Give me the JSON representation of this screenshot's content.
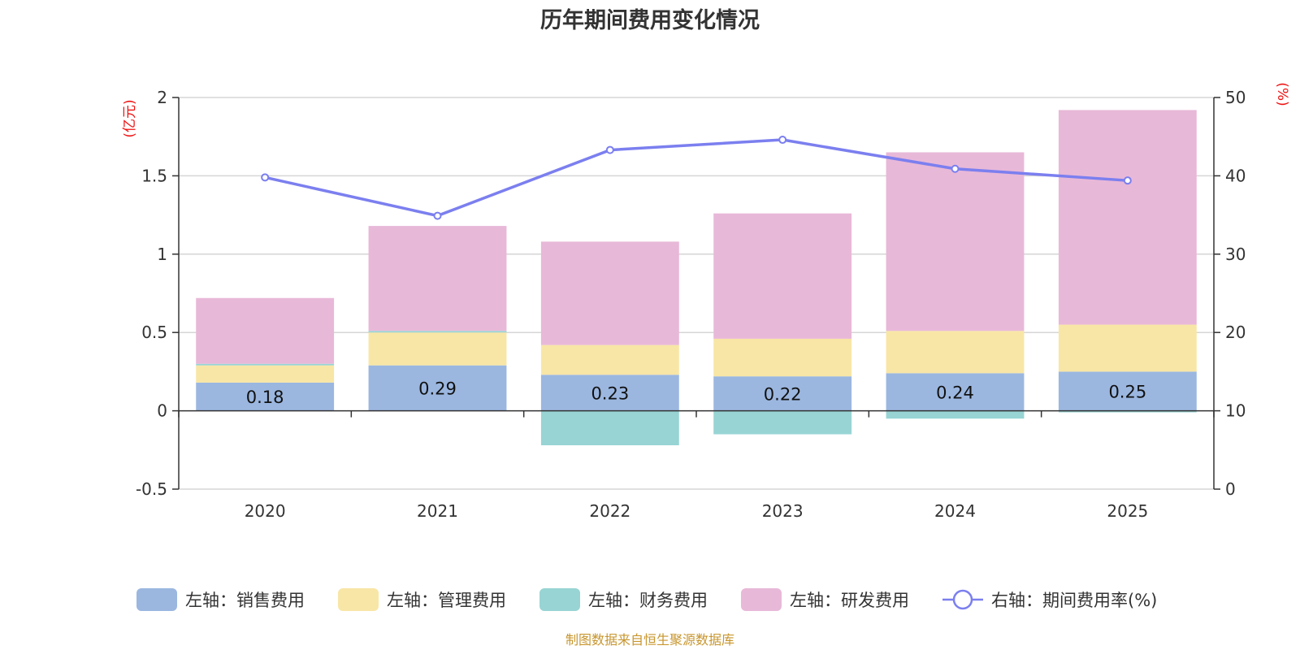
{
  "chart_data": {
    "type": "bar",
    "title": "历年期间费用变化情况",
    "categories": [
      "2020",
      "2021",
      "2022",
      "2023",
      "2024",
      "2025"
    ],
    "left_axis": {
      "unit": "(亿元)",
      "ylim": [
        -0.5,
        2
      ],
      "ticks": [
        "-0.5",
        "0",
        "0.5",
        "1",
        "1.5",
        "2"
      ]
    },
    "right_axis": {
      "unit": "(%)",
      "ylim": [
        0,
        50
      ],
      "ticks": [
        "0",
        "10",
        "20",
        "30",
        "40",
        "50"
      ]
    },
    "series": [
      {
        "name": "左轴：销售费用",
        "kind": "bar",
        "axis": "left",
        "color": "#9bb7e0",
        "values": [
          0.18,
          0.29,
          0.23,
          0.22,
          0.24,
          0.25
        ],
        "labels": [
          "0.18",
          "0.29",
          "0.23",
          "0.22",
          "0.24",
          "0.25"
        ]
      },
      {
        "name": "左轴：管理费用",
        "kind": "bar",
        "axis": "left",
        "color": "#f8e6a6",
        "values": [
          0.11,
          0.21,
          0.19,
          0.24,
          0.27,
          0.3
        ]
      },
      {
        "name": "左轴：财务费用",
        "kind": "bar",
        "axis": "left",
        "color": "#98d4d4",
        "values": [
          0.01,
          0.01,
          -0.22,
          -0.15,
          -0.05,
          -0.01
        ]
      },
      {
        "name": "左轴：研发费用",
        "kind": "bar",
        "axis": "left",
        "color": "#e8b8d8",
        "values": [
          0.42,
          0.67,
          0.66,
          0.8,
          1.14,
          1.37
        ]
      },
      {
        "name": "右轴：期间费用率(%)",
        "kind": "line",
        "axis": "right",
        "color": "#7b7fef",
        "values": [
          39.8,
          34.9,
          43.3,
          44.6,
          40.9,
          39.4
        ]
      }
    ],
    "grid": true,
    "legend_position": "bottom",
    "source": "制图数据来自恒生聚源数据库"
  }
}
